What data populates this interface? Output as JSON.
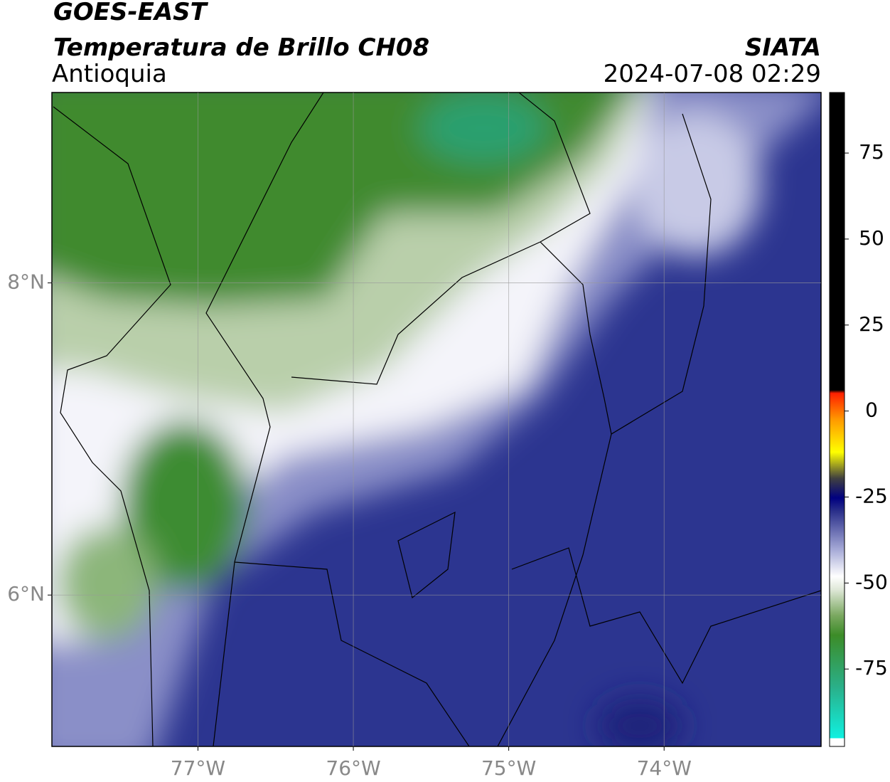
{
  "header": {
    "title": "GOES-EAST",
    "subtitle": "Temperatura de Brillo CH08",
    "region": "Antioquia",
    "source": "SIATA",
    "datetime": "2024-07-08 02:29"
  },
  "map": {
    "xlim": [
      -77.94,
      -72.99
    ],
    "ylim": [
      5.03,
      9.22
    ],
    "xticks": [
      {
        "value": -77,
        "label": "77°W"
      },
      {
        "value": -76,
        "label": "76°W"
      },
      {
        "value": -75,
        "label": "75°W"
      },
      {
        "value": -74,
        "label": "74°W"
      }
    ],
    "yticks": [
      {
        "value": 8,
        "label": "8°N"
      },
      {
        "value": 6,
        "label": "6°N"
      }
    ],
    "grid": true
  },
  "colorbar": {
    "lim": [
      -97.5,
      92.6
    ],
    "ticks": [
      75,
      50,
      25,
      0,
      -25,
      -50,
      -75
    ]
  }
}
